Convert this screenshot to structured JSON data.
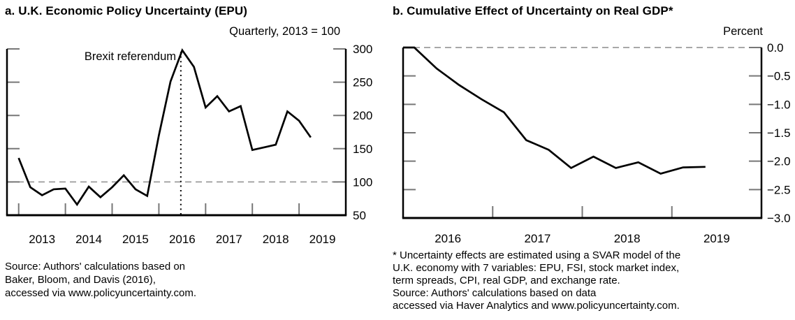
{
  "figure": {
    "background": "#ffffff",
    "text_color": "#000000"
  },
  "panels": {
    "left": {
      "source_note": "Source: Authors' calculations based on\nBaker, Bloom, and Davis (2016),\naccessed via www.policyuncertainty.com."
    },
    "right": {
      "source_note": "* Uncertainty effects are estimated using a SVAR model of the\nU.K. economy with 7 variables: EPU, FSI, stock market index,\nterm spreads, CPI, real GDP, and exchange rate.\nSource: Authors' calculations based on data\naccessed via Haver Analytics and www.policyuncertainty.com."
    }
  },
  "chart_data": [
    {
      "id": "epu",
      "type": "line",
      "title": "a. U.K. Economic Policy Uncertainty (EPU)",
      "units": "Quarterly, 2013 = 100",
      "x": [
        "2013Q1",
        "2013Q2",
        "2013Q3",
        "2013Q4",
        "2014Q1",
        "2014Q2",
        "2014Q3",
        "2014Q4",
        "2015Q1",
        "2015Q2",
        "2015Q3",
        "2015Q4",
        "2016Q1",
        "2016Q2",
        "2016Q3",
        "2016Q4",
        "2017Q1",
        "2017Q2",
        "2017Q3",
        "2017Q4",
        "2018Q1",
        "2018Q2",
        "2018Q3",
        "2018Q4",
        "2019Q1",
        "2019Q2"
      ],
      "values": [
        136,
        92,
        80,
        89,
        90,
        66,
        93,
        77,
        92,
        110,
        89,
        79,
        170,
        251,
        298,
        273,
        212,
        229,
        206,
        214,
        148,
        152,
        156,
        206,
        192,
        167
      ],
      "xlim": [
        2012.75,
        2020.0
      ],
      "ylim": [
        50,
        300
      ],
      "ytick_values": [
        300,
        250,
        200,
        150,
        100,
        50
      ],
      "ytick_labels": [
        "300",
        "250",
        "200",
        "150",
        "100",
        "50"
      ],
      "xtick_years": [
        2013,
        2014,
        2015,
        2016,
        2017,
        2018,
        2019
      ],
      "xtick_labels": [
        "2013",
        "2014",
        "2015",
        "2016",
        "2017",
        "2018",
        "2019"
      ],
      "quarter_alignment": "start",
      "reference_line": {
        "y": 100
      },
      "event_line": {
        "x": 2016.47,
        "y_top": 298,
        "label": "Brexit referendum"
      },
      "line_color": "#000000",
      "reference_color": "#9c9c9c",
      "legend": "none",
      "grid": "off"
    },
    {
      "id": "gdp",
      "type": "line",
      "title": "b. Cumulative Effect of Uncertainty on Real GDP*",
      "units": "Percent",
      "x": [
        "2016Q1",
        "2016Q2",
        "2016Q3",
        "2016Q4",
        "2017Q1",
        "2017Q2",
        "2017Q3",
        "2017Q4",
        "2018Q1",
        "2018Q2",
        "2018Q3",
        "2018Q4",
        "2019Q1",
        "2019Q2"
      ],
      "values": [
        0,
        -0.37,
        -0.66,
        -0.91,
        -1.14,
        -1.63,
        -1.8,
        -2.12,
        -1.92,
        -2.12,
        -2.02,
        -2.22,
        -2.11,
        -2.1
      ],
      "xlim": [
        2016.0,
        2020.0
      ],
      "ylim": [
        -3,
        0
      ],
      "ytick_values": [
        0,
        -0.5,
        -1,
        -1.5,
        -2,
        -2.5,
        -3
      ],
      "ytick_labels": [
        "0.0",
        "−0.5",
        "−1.0",
        "−1.5",
        "−2.0",
        "−2.5",
        "−3.0"
      ],
      "xtick_years": [
        2017,
        2018,
        2019
      ],
      "xtick_labels": [
        "2016",
        "2017",
        "2018",
        "2019"
      ],
      "quarter_alignment": "center",
      "reference_line": {
        "y": 0
      },
      "extend_to_left_spine": true,
      "line_color": "#000000",
      "reference_color": "#9c9c9c",
      "legend": "none",
      "grid": "off"
    }
  ]
}
